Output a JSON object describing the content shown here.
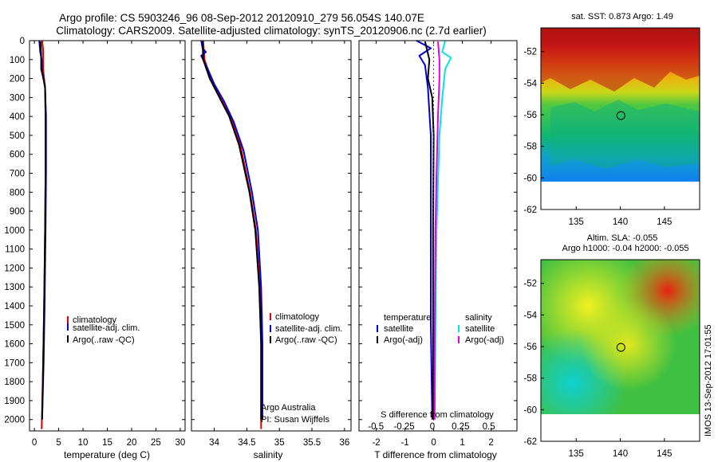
{
  "figure": {
    "title_line1": "Argo profile: CS 5903246_96 08-Sep-2012 20120910_279 56.054S 140.07E",
    "title_line2": "Climatology: CARS2009. Satellite-adjusted climatology: synTS_20120906.nc (2.7d earlier)",
    "footer_stamp": "IMOS 13-Sep-2012 17:01:55"
  },
  "colors": {
    "climatology": "#dd0000",
    "satellite": "#0000dd",
    "argo": "#000000",
    "salinity_satellite": "#00e6e6",
    "salinity_argo": "#e600e6"
  },
  "chart_data": [
    {
      "id": "temperature",
      "type": "line",
      "xlabel": "temperature (deg C)",
      "ylabel": "",
      "xlim": [
        -1,
        31
      ],
      "ylim": [
        2060,
        0
      ],
      "xticks": [
        0,
        5,
        10,
        15,
        20,
        25,
        30
      ],
      "yticks": [
        0,
        100,
        200,
        300,
        400,
        500,
        600,
        700,
        800,
        900,
        1000,
        1100,
        1200,
        1300,
        1400,
        1500,
        1600,
        1700,
        1800,
        1900,
        2000
      ],
      "legend": [
        "climatology",
        "satellite-adj. clim.",
        "Argo(..raw -QC)"
      ],
      "series": [
        {
          "name": "climatology",
          "color": "#dd0000",
          "points": [
            [
              1.6,
              0
            ],
            [
              1.8,
              50
            ],
            [
              1.8,
              150
            ],
            [
              2.2,
              250
            ],
            [
              2.3,
              400
            ],
            [
              2.3,
              700
            ],
            [
              2.2,
              1000
            ],
            [
              2.0,
              1400
            ],
            [
              1.8,
              1700
            ],
            [
              1.5,
              2050
            ]
          ]
        },
        {
          "name": "satellite-adj. clim.",
          "color": "#0000dd",
          "points": [
            [
              1.0,
              0
            ],
            [
              1.2,
              60
            ],
            [
              1.5,
              100
            ],
            [
              1.6,
              160
            ],
            [
              2.2,
              250
            ],
            [
              2.4,
              400
            ],
            [
              2.4,
              700
            ],
            [
              2.3,
              1000
            ],
            [
              2.1,
              1400
            ],
            [
              1.9,
              1700
            ],
            [
              1.6,
              2000
            ]
          ]
        },
        {
          "name": "Argo(..raw -QC)",
          "color": "#000000",
          "points": [
            [
              1.3,
              5
            ],
            [
              1.4,
              80
            ],
            [
              1.4,
              150
            ],
            [
              2.2,
              240
            ],
            [
              2.3,
              400
            ],
            [
              2.3,
              700
            ],
            [
              2.2,
              1000
            ],
            [
              2.0,
              1400
            ],
            [
              1.8,
              1700
            ],
            [
              1.6,
              2000
            ]
          ]
        }
      ]
    },
    {
      "id": "salinity",
      "type": "line",
      "xlabel": "salinity",
      "ylabel": "",
      "xlim": [
        33.65,
        36.1
      ],
      "ylim": [
        2060,
        0
      ],
      "xticks": [
        34,
        34.5,
        35,
        35.5,
        36
      ],
      "legend": [
        "climatology",
        "satellite-adj. clim.",
        "Argo(..raw -QC)"
      ],
      "annotation": [
        "Argo Australia",
        "PI: Susan Wijffels"
      ],
      "series": [
        {
          "name": "climatology",
          "color": "#dd0000",
          "points": [
            [
              33.83,
              0
            ],
            [
              33.85,
              100
            ],
            [
              33.95,
              200
            ],
            [
              34.1,
              300
            ],
            [
              34.25,
              400
            ],
            [
              34.4,
              550
            ],
            [
              34.55,
              800
            ],
            [
              34.64,
              1000
            ],
            [
              34.7,
              1300
            ],
            [
              34.72,
              1600
            ],
            [
              34.72,
              2050
            ]
          ]
        },
        {
          "name": "satellite-adj. clim.",
          "color": "#0000dd",
          "points": [
            [
              33.8,
              0
            ],
            [
              33.82,
              40
            ],
            [
              33.87,
              60
            ],
            [
              33.8,
              80
            ],
            [
              33.9,
              150
            ],
            [
              34.0,
              230
            ],
            [
              34.15,
              320
            ],
            [
              34.3,
              430
            ],
            [
              34.45,
              580
            ],
            [
              34.58,
              800
            ],
            [
              34.67,
              1000
            ],
            [
              34.72,
              1300
            ],
            [
              34.74,
              1600
            ],
            [
              34.74,
              2000
            ]
          ]
        },
        {
          "name": "Argo(..raw -QC)",
          "color": "#000000",
          "points": [
            [
              33.82,
              5
            ],
            [
              33.83,
              100
            ],
            [
              33.93,
              200
            ],
            [
              34.08,
              300
            ],
            [
              34.23,
              400
            ],
            [
              34.38,
              550
            ],
            [
              34.54,
              800
            ],
            [
              34.63,
              1000
            ],
            [
              34.69,
              1300
            ],
            [
              34.72,
              1600
            ],
            [
              34.72,
              2000
            ]
          ]
        }
      ]
    },
    {
      "id": "differences",
      "type": "line",
      "xlabel": "T difference from climatology",
      "xlabel_top": "S difference from climatology",
      "ylabel": "",
      "xlim": [
        -2.6,
        2.9
      ],
      "ylim": [
        2060,
        0
      ],
      "xticks": [
        -2,
        -1,
        0,
        1,
        2
      ],
      "xticks_top": [
        -0.5,
        -0.25,
        0,
        0.25,
        0.5
      ],
      "legend_temperature_title": "temperature",
      "legend_salinity_title": "salinity",
      "legend_items": [
        "satellite",
        "Argo(-adj)"
      ],
      "series": [
        {
          "name": "temperature satellite",
          "color": "#0000dd",
          "points": [
            [
              -0.6,
              0
            ],
            [
              -0.1,
              40
            ],
            [
              -0.5,
              80
            ],
            [
              -0.3,
              130
            ],
            [
              -0.2,
              250
            ],
            [
              -0.1,
              500
            ],
            [
              -0.1,
              1000
            ],
            [
              -0.1,
              1500
            ],
            [
              -0.05,
              2000
            ]
          ]
        },
        {
          "name": "temperature Argo(-adj)",
          "color": "#000000",
          "points": [
            [
              -0.3,
              5
            ],
            [
              -0.15,
              100
            ],
            [
              -0.2,
              200
            ],
            [
              -0.05,
              300
            ],
            [
              0,
              500
            ],
            [
              -0.02,
              1000
            ],
            [
              -0.02,
              1500
            ],
            [
              -0.02,
              2000
            ]
          ]
        },
        {
          "name": "salinity satellite",
          "color": "#00e6e6",
          "points": [
            [
              0.4,
              0
            ],
            [
              0.3,
              60
            ],
            [
              0.6,
              90
            ],
            [
              0.4,
              150
            ],
            [
              0.3,
              300
            ],
            [
              0.2,
              500
            ],
            [
              0.1,
              1000
            ],
            [
              0.06,
              1500
            ],
            [
              0.04,
              2000
            ]
          ]
        },
        {
          "name": "salinity Argo(-adj)",
          "color": "#e600e6",
          "points": [
            [
              0.15,
              5
            ],
            [
              0.2,
              100
            ],
            [
              0.2,
              200
            ],
            [
              0.15,
              400
            ],
            [
              0.1,
              700
            ],
            [
              0.06,
              1000
            ],
            [
              0.04,
              1500
            ],
            [
              0.03,
              2000
            ]
          ]
        }
      ]
    },
    {
      "id": "sst_map",
      "type": "heatmap",
      "title": "sat. SST: 0.873 Argo: 1.49",
      "xlim": [
        131,
        149
      ],
      "ylim": [
        -62,
        -50.5
      ],
      "xticks": [
        135,
        140,
        145
      ],
      "yticks": [
        -52,
        -54,
        -56,
        -58,
        -60,
        -62
      ],
      "argo_position": [
        140.07,
        -56.054
      ]
    },
    {
      "id": "sla_map",
      "type": "heatmap",
      "title": "Altim. SLA: -0.055",
      "subtitle": "Argo h1000: -0.04 h2000: -0.055",
      "xlim": [
        131,
        149
      ],
      "ylim": [
        -62,
        -50.5
      ],
      "xticks": [
        135,
        140,
        145
      ],
      "yticks": [
        -52,
        -54,
        -56,
        -58,
        -60,
        -62
      ],
      "argo_position": [
        140.07,
        -56.054
      ]
    }
  ]
}
